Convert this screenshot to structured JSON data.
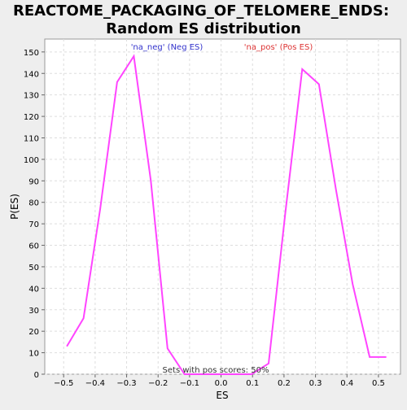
{
  "chart_data": {
    "type": "line",
    "title_lines": [
      "REACTOME_PACKAGING_OF_TELOMERE_ENDS:",
      "Random ES distribution"
    ],
    "xlabel": "ES",
    "ylabel": "P(ES)",
    "xlim": [
      -0.56,
      0.57
    ],
    "ylim": [
      0,
      156
    ],
    "x_ticks": [
      -0.5,
      -0.4,
      -0.3,
      -0.2,
      -0.1,
      0.0,
      0.1,
      0.2,
      0.3,
      0.4,
      0.5
    ],
    "x_tick_labels": [
      "−0.5",
      "−0.4",
      "−0.3",
      "−0.2",
      "−0.1",
      "0.0",
      "0.1",
      "0.2",
      "0.3",
      "0.4",
      "0.5"
    ],
    "y_ticks": [
      0,
      10,
      20,
      30,
      40,
      50,
      60,
      70,
      80,
      90,
      100,
      110,
      120,
      130,
      140,
      150
    ],
    "grid": true,
    "series": [
      {
        "x": [
          -0.49,
          -0.437,
          -0.384,
          -0.33,
          -0.277,
          -0.223,
          -0.17,
          -0.116,
          -0.063,
          0.0,
          0.044,
          0.097,
          0.151,
          0.204,
          0.258,
          0.311,
          0.365,
          0.418,
          0.472,
          0.525
        ],
        "y": [
          13,
          26,
          77,
          136,
          148,
          90,
          12,
          0,
          0,
          0,
          0,
          0,
          5,
          75,
          142,
          135,
          86,
          42,
          8,
          8
        ]
      }
    ],
    "annotations": {
      "neg": "'na_neg' (Neg ES)",
      "pos": "'na_pos' (Pos ES)",
      "bottom": "Sets with pos scores: 50%"
    },
    "colors": {
      "line": "#ff44ff",
      "neg": "#3333cc",
      "pos": "#dd3333",
      "grid": "#dddddd",
      "plot_bg": "#ffffff",
      "page_bg": "#eeeeee"
    }
  }
}
